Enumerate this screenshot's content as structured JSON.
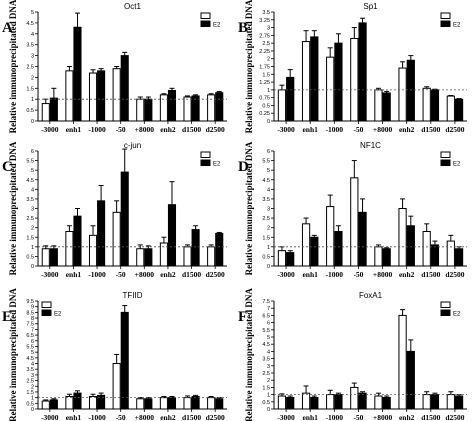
{
  "y_axis_label": "Relative immunoprecipitated DNA",
  "chart_data": [
    {
      "panel": "A",
      "type": "bar",
      "title": "Oct1",
      "categories": [
        "-3000",
        "enh1",
        "-1000",
        "-50",
        "+8000",
        "enh2",
        "d1500",
        "d2500"
      ],
      "series": [
        {
          "name": "",
          "color": "#ffffff",
          "values": [
            0.8,
            2.3,
            2.2,
            2.4,
            1.0,
            1.2,
            1.1,
            1.2
          ],
          "errors": [
            0.2,
            0.2,
            0.15,
            0.1,
            0.1,
            0.05,
            0.05,
            0.05
          ]
        },
        {
          "name": "E2",
          "color": "#000000",
          "values": [
            1.05,
            4.3,
            2.3,
            3.0,
            1.0,
            1.4,
            1.15,
            1.3
          ],
          "errors": [
            0.45,
            0.65,
            0.1,
            0.15,
            0.1,
            0.1,
            0.05,
            0.05
          ]
        }
      ],
      "ylim": [
        0,
        5
      ],
      "yticks": [
        0,
        0.5,
        1,
        1.5,
        2,
        2.5,
        3,
        3.5,
        4,
        4.5,
        5
      ],
      "reference_line": 1,
      "legend_position": "top-right"
    },
    {
      "panel": "B",
      "type": "bar",
      "title": "Sp1",
      "categories": [
        "-3000",
        "enh1",
        "-1000",
        "-50",
        "+8000",
        "enh2",
        "d1500",
        "d2500"
      ],
      "series": [
        {
          "name": "",
          "color": "#ffffff",
          "values": [
            1.0,
            2.55,
            2.05,
            2.65,
            1.0,
            1.7,
            1.05,
            0.8
          ],
          "errors": [
            0.15,
            0.35,
            0.3,
            0.35,
            0.05,
            0.2,
            0.05,
            0.02
          ]
        },
        {
          "name": "E2",
          "color": "#000000",
          "values": [
            1.4,
            2.7,
            2.5,
            3.15,
            0.9,
            1.95,
            1.0,
            0.7
          ],
          "errors": [
            0.25,
            0.2,
            0.3,
            0.15,
            0.05,
            0.15,
            0.02,
            0.02
          ]
        }
      ],
      "ylim": [
        0,
        3.5
      ],
      "yticks": [
        0,
        0.25,
        0.5,
        0.75,
        1,
        1.25,
        1.5,
        1.75,
        2,
        2.25,
        2.5,
        2.75,
        3,
        3.25,
        3.5
      ],
      "reference_line": 1,
      "legend_position": "top-right"
    },
    {
      "panel": "C",
      "type": "bar",
      "title": "c-jun",
      "categories": [
        "-3000",
        "enh1",
        "-1000",
        "-50",
        "+8000",
        "enh2",
        "d1500",
        "d2500"
      ],
      "series": [
        {
          "name": "",
          "color": "#ffffff",
          "values": [
            0.9,
            1.8,
            1.6,
            2.8,
            0.9,
            1.2,
            1.0,
            1.0
          ],
          "errors": [
            0.15,
            0.3,
            0.5,
            0.6,
            0.2,
            0.3,
            0.1,
            0.1
          ]
        },
        {
          "name": "E2",
          "color": "#000000",
          "values": [
            0.9,
            2.6,
            3.4,
            4.9,
            0.9,
            3.2,
            1.9,
            1.7
          ],
          "errors": [
            0.15,
            0.4,
            0.8,
            1.2,
            0.15,
            1.2,
            0.2,
            0.05
          ]
        }
      ],
      "ylim": [
        0,
        6
      ],
      "yticks": [
        0,
        0.5,
        1,
        1.5,
        2,
        2.5,
        3,
        3.5,
        4,
        4.5,
        5,
        5.5,
        6
      ],
      "reference_line": 1,
      "legend_position": "top-right"
    },
    {
      "panel": "D",
      "type": "bar",
      "title": "NF1C",
      "categories": [
        "-3000",
        "enh1",
        "-1000",
        "-50",
        "+8000",
        "enh2",
        "d1500",
        "d2500"
      ],
      "series": [
        {
          "name": "",
          "color": "#ffffff",
          "values": [
            0.8,
            2.2,
            3.1,
            4.6,
            1.0,
            3.0,
            1.8,
            1.3
          ],
          "errors": [
            0.2,
            0.3,
            0.6,
            0.9,
            0.1,
            0.5,
            0.4,
            0.3
          ]
        },
        {
          "name": "E2",
          "color": "#000000",
          "values": [
            0.7,
            1.5,
            1.8,
            2.8,
            0.9,
            2.1,
            1.1,
            0.9
          ],
          "errors": [
            0.1,
            0.1,
            0.3,
            0.7,
            0.05,
            0.5,
            0.2,
            0.1
          ]
        }
      ],
      "ylim": [
        0,
        6
      ],
      "yticks": [
        0,
        0.5,
        1,
        1.5,
        2,
        2.5,
        3,
        3.5,
        4,
        4.5,
        5,
        5.5,
        6
      ],
      "reference_line": 1,
      "legend_position": "top-right"
    },
    {
      "panel": "E",
      "type": "bar",
      "title": "TFIID",
      "categories": [
        "-3000",
        "enh1",
        "-1000",
        "-50",
        "+8000",
        "enh2",
        "d1500",
        "d2500"
      ],
      "series": [
        {
          "name": "",
          "color": "#ffffff",
          "values": [
            0.7,
            1.1,
            1.1,
            4.0,
            0.9,
            1.0,
            1.0,
            1.0
          ],
          "errors": [
            0.1,
            0.2,
            0.2,
            0.8,
            0.1,
            0.1,
            0.15,
            0.1
          ]
        },
        {
          "name": "E2",
          "color": "#000000",
          "values": [
            0.8,
            1.4,
            1.2,
            8.5,
            0.9,
            1.0,
            1.1,
            0.9
          ],
          "errors": [
            0.1,
            0.2,
            0.2,
            0.6,
            0.1,
            0.1,
            0.1,
            0.1
          ]
        }
      ],
      "ylim": [
        0,
        9.5
      ],
      "yticks": [
        0,
        0.5,
        1,
        1.5,
        2,
        2.5,
        3,
        3.5,
        4,
        4.5,
        5,
        5.5,
        6,
        6.5,
        7,
        7.5,
        8,
        8.5,
        9,
        9.5
      ],
      "reference_line": 1,
      "legend_position": "top-left"
    },
    {
      "panel": "F",
      "type": "bar",
      "title": "FoxA1",
      "categories": [
        "-3000",
        "enh1",
        "-1000",
        "-50",
        "+8000",
        "enh2",
        "d1500",
        "d2500"
      ],
      "series": [
        {
          "name": "",
          "color": "#ffffff",
          "values": [
            0.9,
            1.1,
            1.0,
            1.5,
            0.9,
            6.5,
            1.0,
            1.0
          ],
          "errors": [
            0.15,
            0.5,
            0.3,
            0.3,
            0.2,
            0.4,
            0.2,
            0.2
          ]
        },
        {
          "name": "E2",
          "color": "#000000",
          "values": [
            0.8,
            0.8,
            1.0,
            1.1,
            0.8,
            4.0,
            1.0,
            0.9
          ],
          "errors": [
            0.1,
            0.1,
            0.1,
            0.1,
            0.1,
            0.8,
            0.1,
            0.1
          ]
        }
      ],
      "ylim": [
        0,
        7.5
      ],
      "yticks": [
        0,
        0.5,
        1,
        1.5,
        2,
        2.5,
        3,
        3.5,
        4,
        4.5,
        5,
        5.5,
        6,
        6.5,
        7,
        7.5
      ],
      "reference_line": 1,
      "legend_position": "top-right"
    }
  ]
}
